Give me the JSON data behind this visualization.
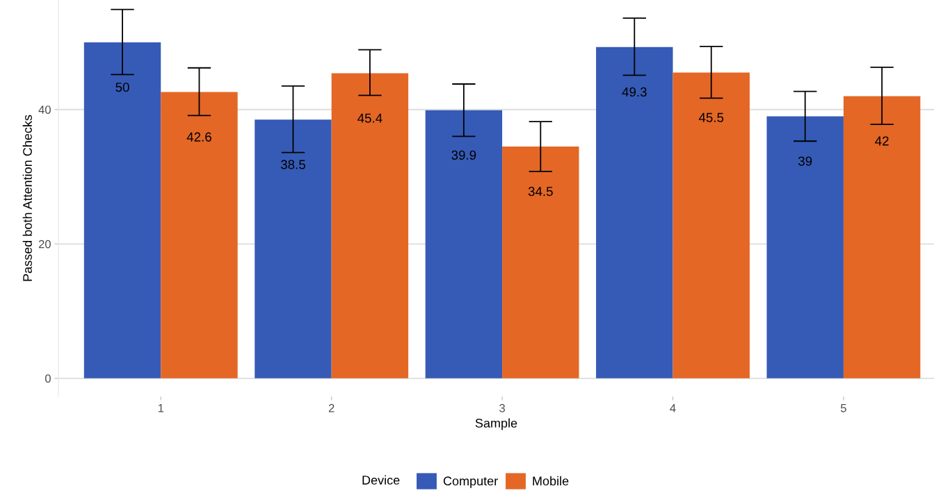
{
  "chart_data": {
    "type": "bar",
    "xlabel": "Sample",
    "ylabel": "Passed both Attention Checks",
    "legend_title": "Device",
    "categories": [
      "1",
      "2",
      "3",
      "4",
      "5"
    ],
    "series": [
      {
        "name": "Computer",
        "color": "#365bb6",
        "values": [
          50,
          38.5,
          39.9,
          49.3,
          39
        ],
        "errors": [
          [
            45.2,
            54.9
          ],
          [
            33.6,
            43.5
          ],
          [
            36.0,
            43.8
          ],
          [
            45.1,
            53.6
          ],
          [
            35.3,
            42.7
          ]
        ]
      },
      {
        "name": "Mobile",
        "color": "#e46726",
        "values": [
          42.6,
          45.4,
          34.5,
          45.5,
          42
        ],
        "errors": [
          [
            39.1,
            46.2
          ],
          [
            42.1,
            48.9
          ],
          [
            30.8,
            38.2
          ],
          [
            41.7,
            49.4
          ],
          [
            37.8,
            46.3
          ]
        ]
      }
    ],
    "ylim": [
      -2.7,
      56.3
    ],
    "yticks": [
      0,
      20,
      40
    ],
    "grid": "y",
    "legend": "bottom",
    "data_labels": true
  }
}
